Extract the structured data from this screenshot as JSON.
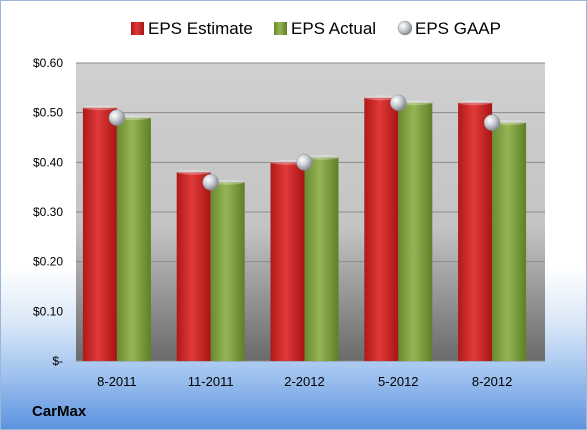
{
  "chart_data": {
    "type": "bar",
    "categories": [
      "8-2011",
      "11-2011",
      "2-2012",
      "5-2012",
      "8-2012"
    ],
    "series": [
      {
        "name": "EPS Estimate",
        "kind": "bar",
        "color": "#d42525",
        "values": [
          0.51,
          0.38,
          0.4,
          0.53,
          0.52
        ]
      },
      {
        "name": "EPS Actual",
        "kind": "bar",
        "color": "#7e9c3c",
        "values": [
          0.49,
          0.36,
          0.41,
          0.52,
          0.48
        ]
      },
      {
        "name": "EPS GAAP",
        "kind": "marker",
        "color": "#b8bcc4",
        "values": [
          0.49,
          0.36,
          0.4,
          0.52,
          0.48
        ]
      }
    ],
    "y_ticks": [
      {
        "value": 0,
        "label": "$-"
      },
      {
        "value": 0.1,
        "label": "$0.10"
      },
      {
        "value": 0.2,
        "label": "$0.20"
      },
      {
        "value": 0.3,
        "label": "$0.30"
      },
      {
        "value": 0.4,
        "label": "$0.40"
      },
      {
        "value": 0.5,
        "label": "$0.50"
      },
      {
        "value": 0.6,
        "label": "$0.60"
      }
    ],
    "ylim": [
      0,
      0.6
    ],
    "grid": true,
    "legend_position": "top"
  },
  "company": "CarMax"
}
